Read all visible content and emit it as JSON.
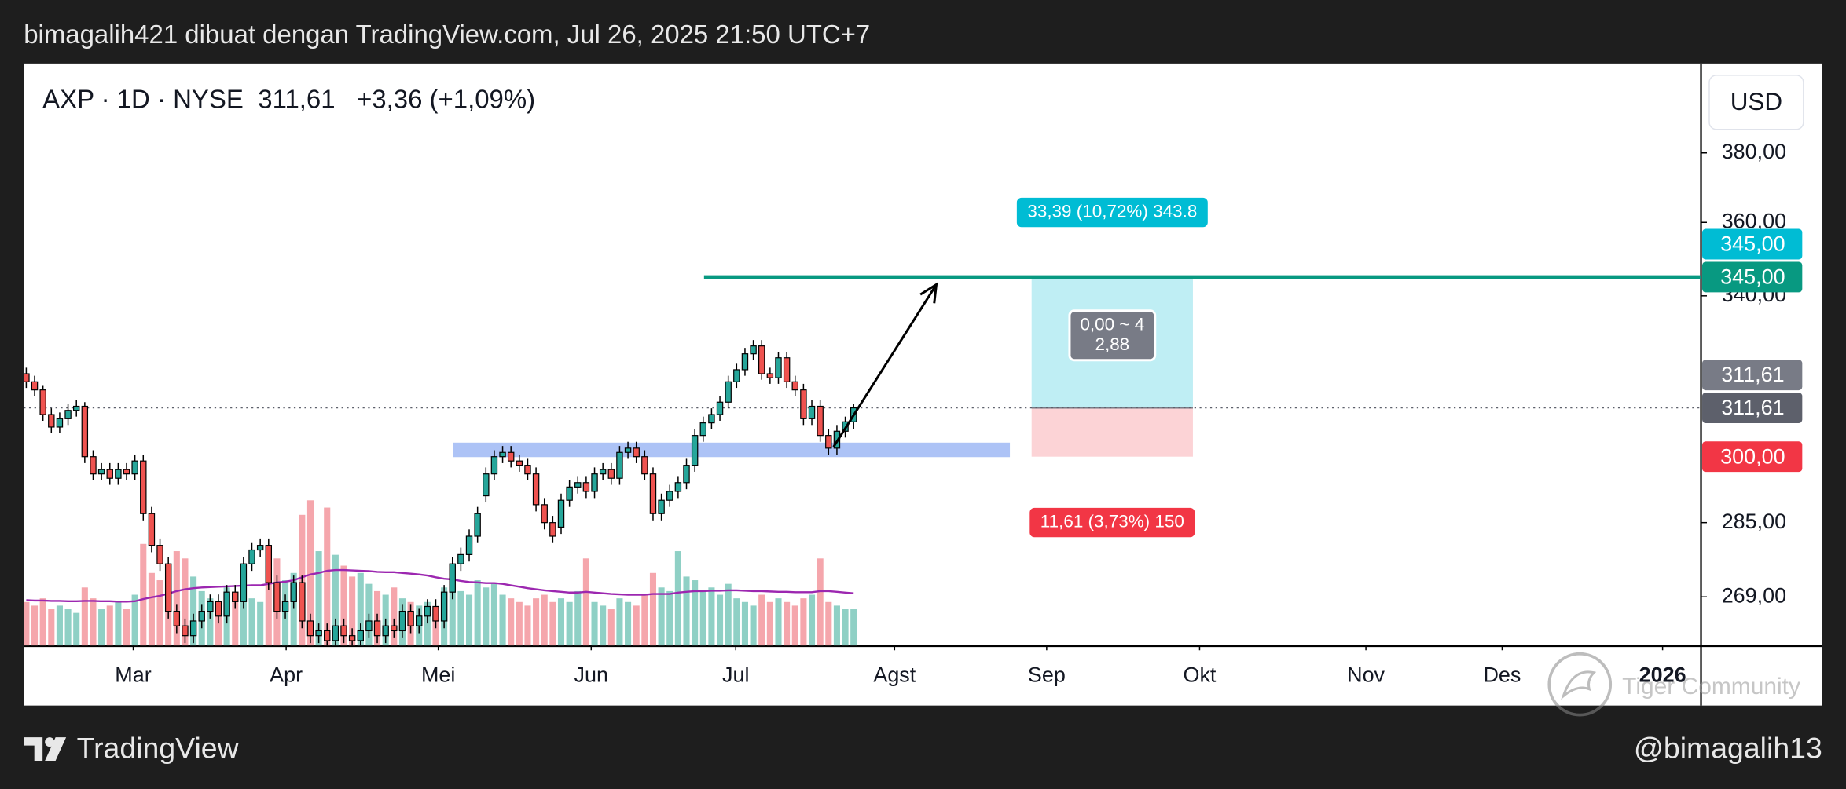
{
  "header": "bimagalih421 dibuat dengan TradingView.com, Jul 26, 2025 21:50 UTC+7",
  "footer": {
    "brand": "TradingView",
    "author": "@bimagalih13",
    "watermark": "Tiger Community"
  },
  "chart_data": {
    "type": "candlestick",
    "symbol": "AXP · 1D · NYSE",
    "change_label": "+3,36 (+1,09%)",
    "currency": "USD",
    "log_scale": true,
    "grid": false,
    "xlim": [
      -0.3,
      200.4
    ],
    "xticks": [
      {
        "value": 12.8,
        "label": "Mar"
      },
      {
        "value": 31.1,
        "label": "Apr"
      },
      {
        "value": 49.3,
        "label": "Mei"
      },
      {
        "value": 67.6,
        "label": "Jun"
      },
      {
        "value": 84.9,
        "label": "Jul"
      },
      {
        "value": 103.9,
        "label": "Agst"
      },
      {
        "value": 122.1,
        "label": "Sep"
      },
      {
        "value": 140.4,
        "label": "Okt"
      },
      {
        "value": 160.3,
        "label": "Nov"
      },
      {
        "value": 176.6,
        "label": "Des"
      },
      {
        "value": 195.8,
        "label": "2026"
      }
    ],
    "ylim": [
      259,
      407
    ],
    "yticks": [
      {
        "value": 380,
        "label": "380,00"
      },
      {
        "value": 360,
        "label": "360,00"
      },
      {
        "value": 340,
        "label": "340,00"
      },
      {
        "value": 285,
        "label": "285,00"
      },
      {
        "value": 269,
        "label": "269,00"
      }
    ],
    "up_color": "#26a69a",
    "down_color": "#ef5350",
    "open": [
      320,
      318,
      316,
      310,
      307,
      309,
      311,
      312,
      300,
      296,
      297,
      295,
      297,
      296,
      299,
      287,
      280,
      276,
      266,
      263,
      261,
      264,
      266,
      268,
      265,
      270,
      268,
      276,
      279,
      280,
      272,
      266,
      268,
      272,
      264,
      261,
      262,
      260,
      263,
      261,
      260,
      262,
      264,
      261,
      263,
      262,
      266,
      263,
      265,
      267,
      264,
      270,
      276,
      278,
      282,
      291,
      296,
      300,
      301,
      299,
      298,
      296,
      289,
      285,
      284,
      290,
      293,
      294,
      292,
      296,
      297,
      295,
      301,
      302,
      300,
      296,
      287,
      290,
      292,
      294,
      298,
      305,
      308,
      310,
      313,
      318,
      321,
      325,
      327,
      320,
      319,
      324,
      318,
      316,
      309,
      312,
      305,
      302,
      306,
      308.25
    ],
    "high": [
      321.5,
      319.5,
      317,
      311.5,
      310.5,
      312.5,
      313.5,
      313,
      301.5,
      298.5,
      298.5,
      298.5,
      298.5,
      300.5,
      300.5,
      288.5,
      281.5,
      277.5,
      267.5,
      264.5,
      265.5,
      267.5,
      269.5,
      269.5,
      271.5,
      271.5,
      277.5,
      280.5,
      281.5,
      281.5,
      273.5,
      269.5,
      273.5,
      273.5,
      265.5,
      263.5,
      263.5,
      264.5,
      264.5,
      262.5,
      263.5,
      265.5,
      265.5,
      264.5,
      264.5,
      267.5,
      267.5,
      266.5,
      268.5,
      268.5,
      271.5,
      277.5,
      279.5,
      283.5,
      288.5,
      297.5,
      301.5,
      302.5,
      302.5,
      300.5,
      299.5,
      297.5,
      290.5,
      286.5,
      291.5,
      294.5,
      295.5,
      295.5,
      297.5,
      298.5,
      298.5,
      302.5,
      303.5,
      303.5,
      301.5,
      297.5,
      291.5,
      293.5,
      295.5,
      299.5,
      306.5,
      309.5,
      311.5,
      314.5,
      319.5,
      322.5,
      326.5,
      328.5,
      328.5,
      321.5,
      325.5,
      325.5,
      319.5,
      317.5,
      313.5,
      313.5,
      306.5,
      307.5,
      309.5,
      312.5
    ],
    "low": [
      316.5,
      314.5,
      308.5,
      305.5,
      305.5,
      307.5,
      309.5,
      298.5,
      294.5,
      294.5,
      293.5,
      293.5,
      294.5,
      294.5,
      285.5,
      278.5,
      274.5,
      264.5,
      261.5,
      259.5,
      259.5,
      262.5,
      264.5,
      263.5,
      263.5,
      266.5,
      266.5,
      274.5,
      277.5,
      270.5,
      264.5,
      264.5,
      266.5,
      262.5,
      259.5,
      259.5,
      258.5,
      258.5,
      259.5,
      258.5,
      258.5,
      260.5,
      259.5,
      259.5,
      260.5,
      260.5,
      261.5,
      261.5,
      263.5,
      262.5,
      262.5,
      268.5,
      274.5,
      276.5,
      280.5,
      289.5,
      294.5,
      298.5,
      297.5,
      296.5,
      294.5,
      287.5,
      283.5,
      280.5,
      282.5,
      288.5,
      291.5,
      290.5,
      290.5,
      294.5,
      293.5,
      293.5,
      299.5,
      298.5,
      294.5,
      285.5,
      285.5,
      288.5,
      290.5,
      292.5,
      296.5,
      303.5,
      306.5,
      308.5,
      311.5,
      316.5,
      319.5,
      323.5,
      318.5,
      317.5,
      317.5,
      316.5,
      314.5,
      307.5,
      307.5,
      303.5,
      300.5,
      300.5,
      304.5,
      306.5
    ],
    "close": [
      318,
      316,
      310,
      307,
      309,
      311,
      312,
      300,
      296,
      297,
      295,
      297,
      296,
      299,
      287,
      280,
      276,
      266,
      263,
      261,
      264,
      266,
      268,
      265,
      270,
      268,
      276,
      279,
      280,
      272,
      266,
      268,
      272,
      264,
      261,
      262,
      260,
      263,
      261,
      260,
      262,
      264,
      261,
      263,
      262,
      266,
      263,
      265,
      267,
      264,
      270,
      276,
      278,
      282,
      287,
      296,
      300,
      301,
      299,
      298,
      296,
      289,
      285,
      282,
      290,
      293,
      294,
      292,
      296,
      297,
      295,
      301,
      302,
      300,
      296,
      287,
      290,
      292,
      294,
      298,
      305,
      308,
      310,
      313,
      318,
      321,
      325,
      327,
      320,
      319,
      324,
      318,
      316,
      309,
      312,
      305,
      302,
      306,
      308.25,
      311.61
    ],
    "volume": {
      "ylim": [
        0,
        16
      ],
      "up_color": "#8fd0c5",
      "down_color": "#f5a6ac",
      "values": [
        1.2,
        1.1,
        1.3,
        1.0,
        1.1,
        1.0,
        0.9,
        1.6,
        1.3,
        1.0,
        1.1,
        1.2,
        1.0,
        1.4,
        2.8,
        2.0,
        1.8,
        2.2,
        2.6,
        2.4,
        1.9,
        1.5,
        1.3,
        1.2,
        1.6,
        1.4,
        1.5,
        1.3,
        1.2,
        2.2,
        2.4,
        1.8,
        2.0,
        3.6,
        4.0,
        2.6,
        3.8,
        2.5,
        2.2,
        1.9,
        2.0,
        1.7,
        1.5,
        1.4,
        1.6,
        1.3,
        1.2,
        1.1,
        1.2,
        1.0,
        1.6,
        1.9,
        1.5,
        1.4,
        1.8,
        1.6,
        1.7,
        1.4,
        1.3,
        1.2,
        1.1,
        1.3,
        1.4,
        1.2,
        1.3,
        1.2,
        1.5,
        2.4,
        1.2,
        1.1,
        1.0,
        1.3,
        1.2,
        1.1,
        1.4,
        2.0,
        1.6,
        1.5,
        2.6,
        1.9,
        1.8,
        1.5,
        1.6,
        1.4,
        1.7,
        1.3,
        1.2,
        1.1,
        1.4,
        1.2,
        1.3,
        1.2,
        1.1,
        1.3,
        1.4,
        2.4,
        1.2,
        1.1,
        1.0,
        1.0
      ]
    },
    "volume_ma": {
      "color": "#9c27b0",
      "values": [
        1.25,
        1.24,
        1.24,
        1.23,
        1.23,
        1.22,
        1.22,
        1.23,
        1.23,
        1.22,
        1.22,
        1.21,
        1.21,
        1.22,
        1.28,
        1.33,
        1.37,
        1.43,
        1.5,
        1.55,
        1.58,
        1.6,
        1.61,
        1.62,
        1.63,
        1.64,
        1.65,
        1.66,
        1.66,
        1.7,
        1.74,
        1.76,
        1.8,
        1.88,
        1.96,
        2.0,
        2.06,
        2.08,
        2.08,
        2.07,
        2.06,
        2.05,
        2.03,
        2.02,
        2.02,
        2.0,
        1.98,
        1.96,
        1.93,
        1.88,
        1.84,
        1.82,
        1.78,
        1.75,
        1.74,
        1.72,
        1.72,
        1.7,
        1.66,
        1.62,
        1.58,
        1.55,
        1.52,
        1.5,
        1.48,
        1.46,
        1.46,
        1.48,
        1.46,
        1.44,
        1.42,
        1.41,
        1.4,
        1.4,
        1.4,
        1.42,
        1.42,
        1.42,
        1.46,
        1.48,
        1.5,
        1.5,
        1.51,
        1.51,
        1.52,
        1.52,
        1.51,
        1.5,
        1.5,
        1.49,
        1.48,
        1.48,
        1.47,
        1.47,
        1.47,
        1.5,
        1.5,
        1.48,
        1.46,
        1.44
      ]
    },
    "last_price": {
      "value": 311.61,
      "label": "311,61",
      "color": "#5d606b"
    },
    "level": {
      "value": 345,
      "label": "345,00",
      "color": "#089981",
      "x_start": 81.1
    },
    "support_zone": {
      "top": 303.3,
      "bottom": 299.9,
      "x": [
        51.1,
        117.7
      ],
      "color": "#adc3f6"
    },
    "arrow": {
      "x": [
        96.6,
        108.9
      ],
      "y": [
        302.3,
        343
      ]
    },
    "position": {
      "entry": 311.61,
      "target": 345,
      "stop": 300,
      "x": [
        120.3,
        139.6
      ],
      "target_color": "#00bcd4",
      "stop_color": "#f23645",
      "entry_color": "#787b86",
      "target_badge": "345,00",
      "entry_badge": "311,61",
      "stop_badge": "300,00",
      "target_label": "33,39 (10,72%) 343.8",
      "stop_label": "11,61 (3,73%) 150",
      "center_label": [
        "0,00 ~ 4",
        "2,88"
      ]
    }
  }
}
